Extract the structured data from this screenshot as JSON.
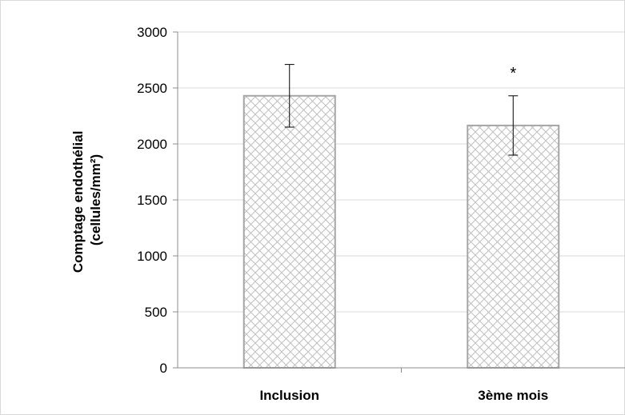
{
  "chart_data": {
    "type": "bar",
    "categories": [
      "Inclusion",
      "3ème mois"
    ],
    "values": [
      2430,
      2165
    ],
    "error": [
      280,
      265
    ],
    "annotations": [
      "",
      "*"
    ],
    "ylabel_lines": [
      "Comptage endothélial",
      "(cellules/mm²)"
    ],
    "ylim": [
      0,
      3000
    ],
    "yticks": [
      0,
      500,
      1000,
      1500,
      2000,
      2500,
      3000
    ],
    "grid": true,
    "legend": "none",
    "colors": {
      "bar_fill": "#ffffff",
      "bar_hatch": "#bfbfbf",
      "bar_border": "#a6a6a6",
      "gridline": "#d9d9d9",
      "axis": "#8c8c8c",
      "error_bar": "#000000"
    }
  }
}
